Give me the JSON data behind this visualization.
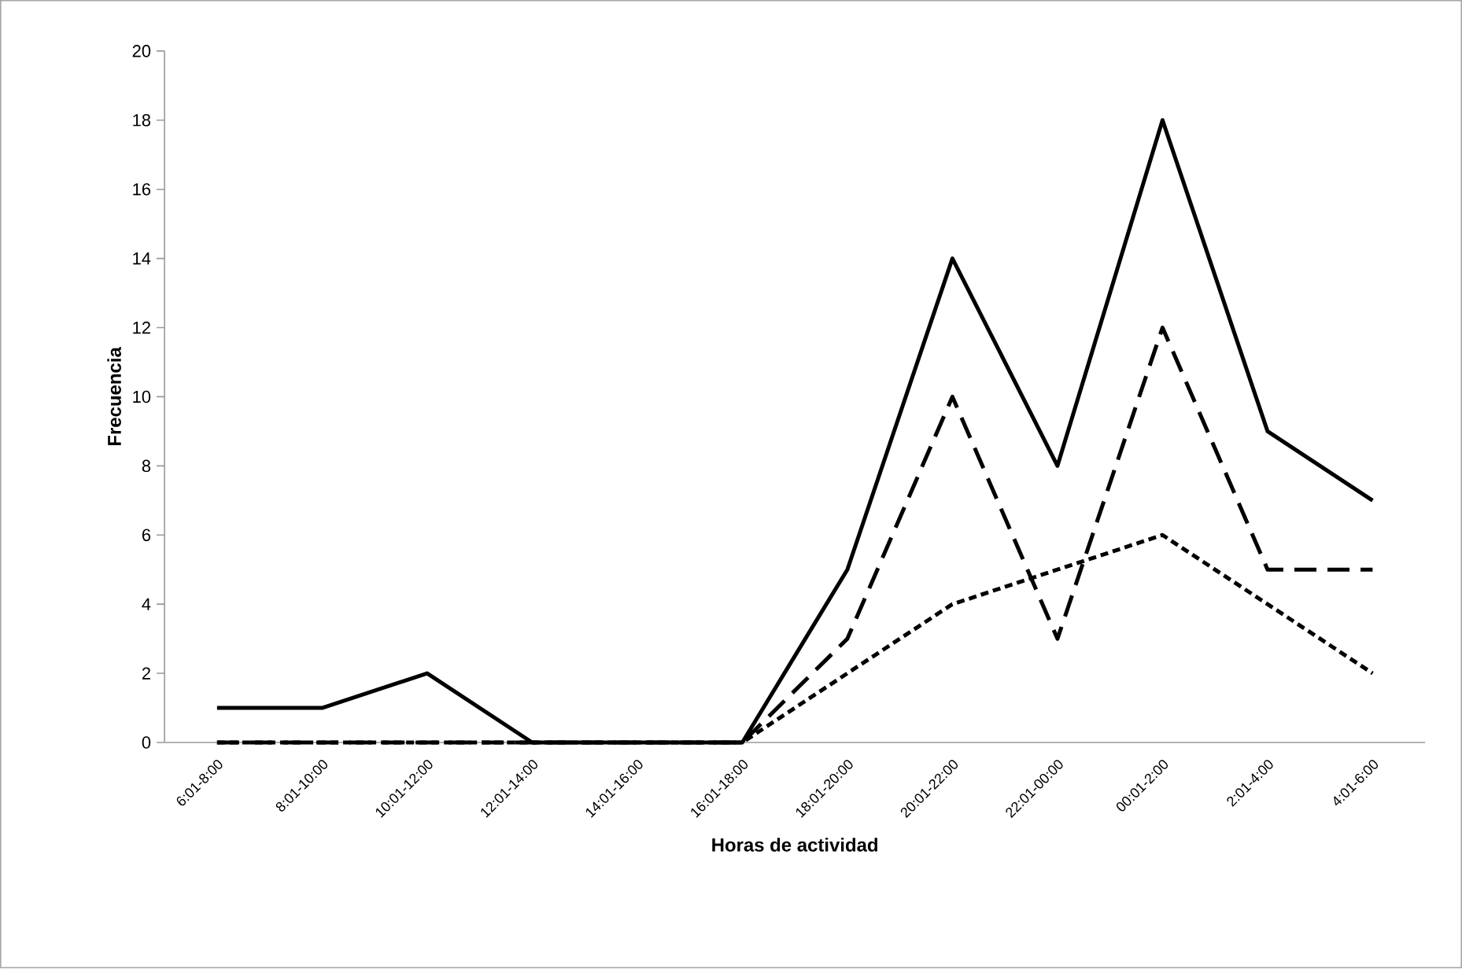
{
  "chart_data": {
    "type": "line",
    "xlabel": "Horas de actividad",
    "ylabel": "Frecuencia",
    "categories": [
      "6:01-8:00",
      "8:01-10:00",
      "10:01-12:00",
      "12:01-14:00",
      "14:01-16:00",
      "16:01-18:00",
      "18:01-20:00",
      "20:01-22:00",
      "22:01-00:00",
      "00:01-2:00",
      "2:01-4:00",
      "4:01-6:00"
    ],
    "series": [
      {
        "color": "#000000",
        "line_style": "solid",
        "values": [
          1,
          1,
          2,
          0,
          0,
          0,
          5,
          14,
          8,
          18,
          9,
          7
        ]
      },
      {
        "color": "#000000",
        "line_style": "dashed",
        "values": [
          0,
          0,
          0,
          0,
          0,
          0,
          3,
          10,
          3,
          12,
          5,
          5
        ]
      },
      {
        "color": "#000000",
        "line_style": "dotted",
        "values": [
          0,
          0,
          0,
          0,
          0,
          0,
          2,
          4,
          5,
          6,
          4,
          2
        ]
      }
    ],
    "ylim": [
      0,
      20
    ],
    "yticks": [
      0,
      2,
      4,
      6,
      8,
      10,
      12,
      14,
      16,
      18,
      20
    ],
    "grid": false,
    "marker": "none"
  }
}
